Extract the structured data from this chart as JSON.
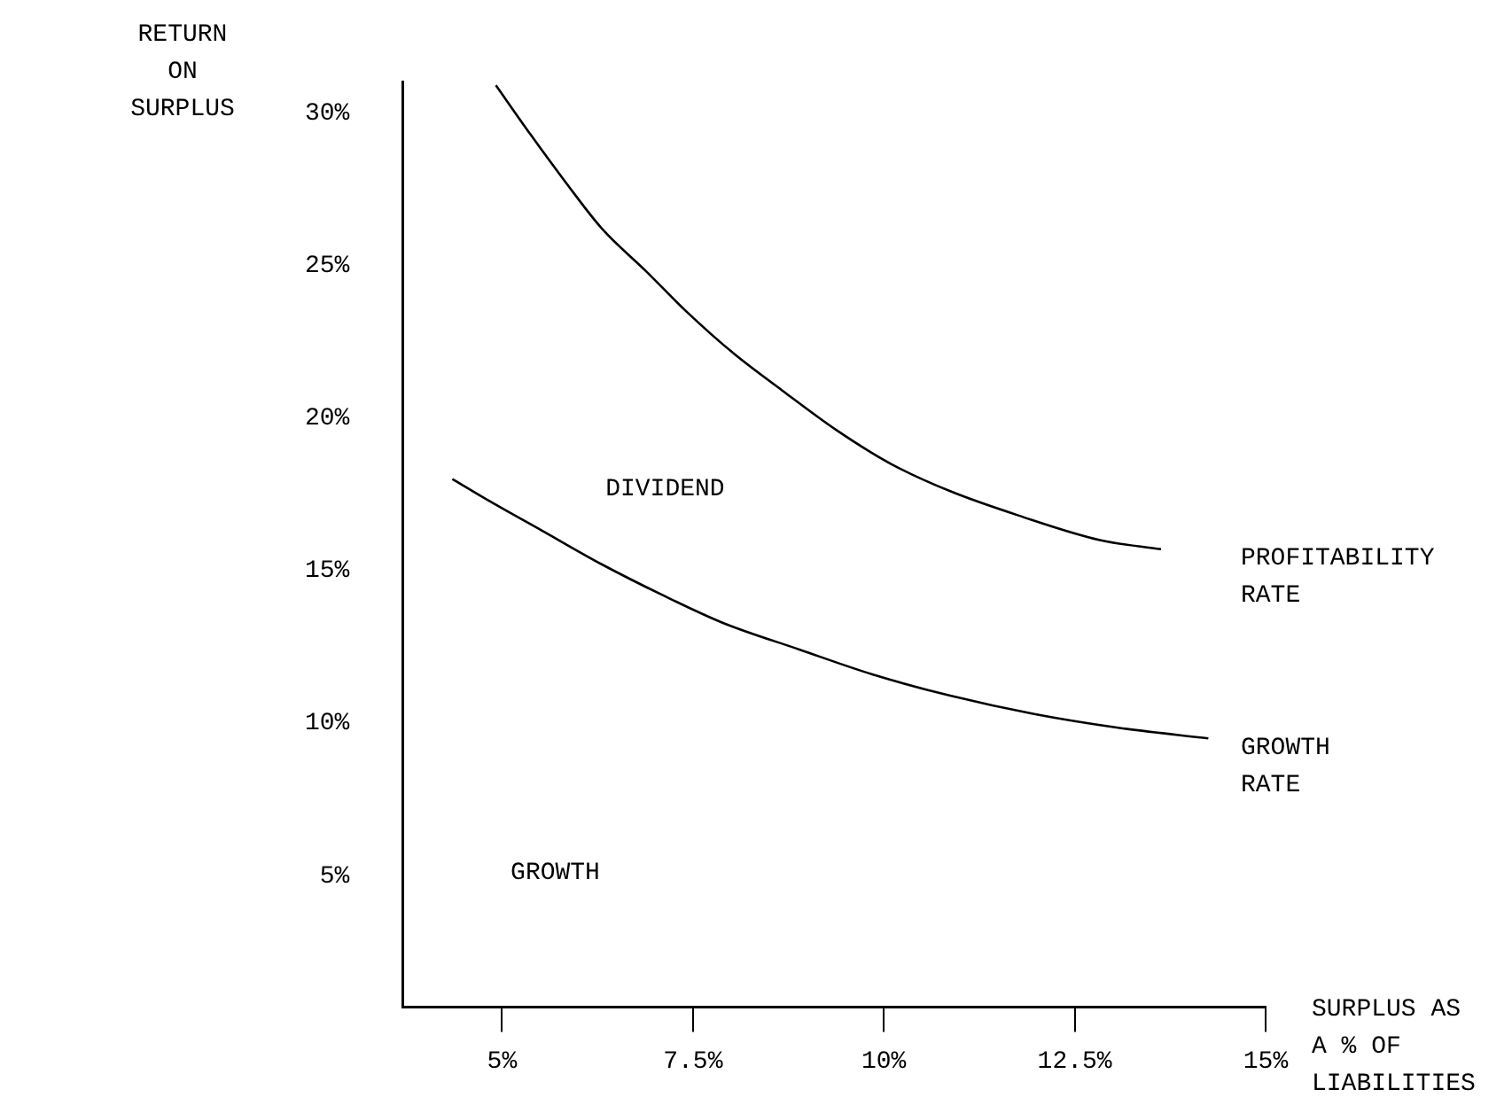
{
  "chart_data": {
    "type": "line",
    "xlabel": "SURPLUS AS A % OF LIABILITIES",
    "ylabel": "RETURN ON SURPLUS",
    "annotations": [
      "DIVIDEND",
      "GROWTH"
    ],
    "xlim": [
      3.7,
      15
    ],
    "xticks": [
      {
        "value": 5,
        "label": "5%"
      },
      {
        "value": 7.5,
        "label": "7.5%"
      },
      {
        "value": 10,
        "label": "10%"
      },
      {
        "value": 12.5,
        "label": "12.5%"
      },
      {
        "value": 15,
        "label": "15%"
      }
    ],
    "ylim": [
      0.7,
      31
    ],
    "yticks": [
      {
        "value": 5,
        "label": "5%"
      },
      {
        "value": 10,
        "label": "10%"
      },
      {
        "value": 15,
        "label": "15%"
      },
      {
        "value": 20,
        "label": "20%"
      },
      {
        "value": 25,
        "label": "25%"
      },
      {
        "value": 30,
        "label": "30%"
      }
    ],
    "grid": false,
    "legend": false,
    "marker": "none",
    "line_style": "solid",
    "series": [
      {
        "name": "PROFITABILITY RATE",
        "color": "#000000",
        "x": [
          4.92,
          5.37,
          5.84,
          6.31,
          6.89,
          7.41,
          8.04,
          8.67,
          9.38,
          10.09,
          10.87,
          11.77,
          12.83,
          13.63
        ],
        "values": [
          30.9,
          29.3,
          27.7,
          26.2,
          24.8,
          23.5,
          22.1,
          20.9,
          19.6,
          18.5,
          17.6,
          16.8,
          16.0,
          15.7
        ]
      },
      {
        "name": "GROWTH RATE",
        "color": "#000000",
        "x": [
          4.35,
          4.82,
          5.53,
          6.31,
          7.1,
          7.88,
          8.91,
          9.85,
          10.87,
          11.97,
          13.07,
          14.25
        ],
        "values": [
          18.0,
          17.3,
          16.3,
          15.2,
          14.2,
          13.3,
          12.4,
          11.6,
          10.9,
          10.3,
          9.85,
          9.5
        ]
      }
    ]
  }
}
